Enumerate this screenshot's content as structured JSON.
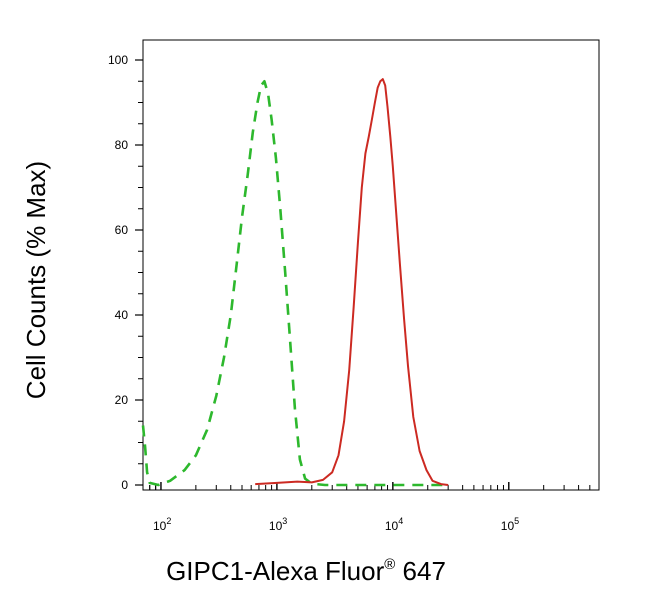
{
  "chart_data": {
    "type": "line",
    "xlabel": "GIPC1-Alexa Fluor",
    "xlabel_reg": "®",
    "xlabel_suffix": " 647",
    "ylabel": "Cell Counts (% Max)",
    "x_scale": "log",
    "xlim": [
      70,
      600000
    ],
    "ylim": [
      0,
      100
    ],
    "yticks": [
      0,
      20,
      40,
      60,
      80,
      100
    ],
    "ytick_labels": [
      "0",
      "20",
      "40",
      "60",
      "80",
      "100"
    ],
    "xticks": [
      100,
      1000,
      10000,
      100000
    ],
    "xtick_labels": [
      {
        "base": "10",
        "exp": "2"
      },
      {
        "base": "10",
        "exp": "3"
      },
      {
        "base": "10",
        "exp": "4"
      },
      {
        "base": "10",
        "exp": "5"
      }
    ],
    "grid": false,
    "series": [
      {
        "style": "dashed",
        "color": "#2db82d",
        "points": [
          [
            70,
            14
          ],
          [
            73,
            9
          ],
          [
            76,
            3
          ],
          [
            80,
            0.5
          ],
          [
            95,
            0
          ],
          [
            120,
            1
          ],
          [
            160,
            3.5
          ],
          [
            200,
            7
          ],
          [
            250,
            13
          ],
          [
            300,
            21
          ],
          [
            350,
            30
          ],
          [
            400,
            40
          ],
          [
            450,
            52
          ],
          [
            500,
            63
          ],
          [
            560,
            73
          ],
          [
            620,
            83
          ],
          [
            680,
            90
          ],
          [
            730,
            94
          ],
          [
            780,
            95
          ],
          [
            840,
            92
          ],
          [
            900,
            86
          ],
          [
            980,
            77
          ],
          [
            1070,
            65
          ],
          [
            1180,
            50
          ],
          [
            1300,
            34
          ],
          [
            1430,
            18
          ],
          [
            1580,
            6
          ],
          [
            1750,
            1.5
          ],
          [
            2000,
            0.3
          ],
          [
            2600,
            0
          ],
          [
            10000,
            0
          ],
          [
            30000,
            0
          ]
        ]
      },
      {
        "style": "solid",
        "color": "#cc2a22",
        "points": [
          [
            650,
            0.2
          ],
          [
            1000,
            0.5
          ],
          [
            1500,
            0.8
          ],
          [
            2000,
            0.6
          ],
          [
            2500,
            1.2
          ],
          [
            3000,
            3
          ],
          [
            3400,
            7
          ],
          [
            3800,
            15
          ],
          [
            4200,
            27
          ],
          [
            4600,
            42
          ],
          [
            5000,
            57
          ],
          [
            5400,
            70
          ],
          [
            5800,
            78
          ],
          [
            6200,
            82
          ],
          [
            6600,
            86
          ],
          [
            7000,
            90
          ],
          [
            7400,
            93.5
          ],
          [
            7800,
            95
          ],
          [
            8200,
            95.5
          ],
          [
            8600,
            94
          ],
          [
            9000,
            89
          ],
          [
            9500,
            82
          ],
          [
            10000,
            75
          ],
          [
            10700,
            64
          ],
          [
            11500,
            52
          ],
          [
            12500,
            39
          ],
          [
            13500,
            28
          ],
          [
            15000,
            16
          ],
          [
            17000,
            8
          ],
          [
            19500,
            3.5
          ],
          [
            22000,
            1
          ],
          [
            26000,
            0.2
          ],
          [
            30000,
            0
          ]
        ]
      }
    ]
  }
}
